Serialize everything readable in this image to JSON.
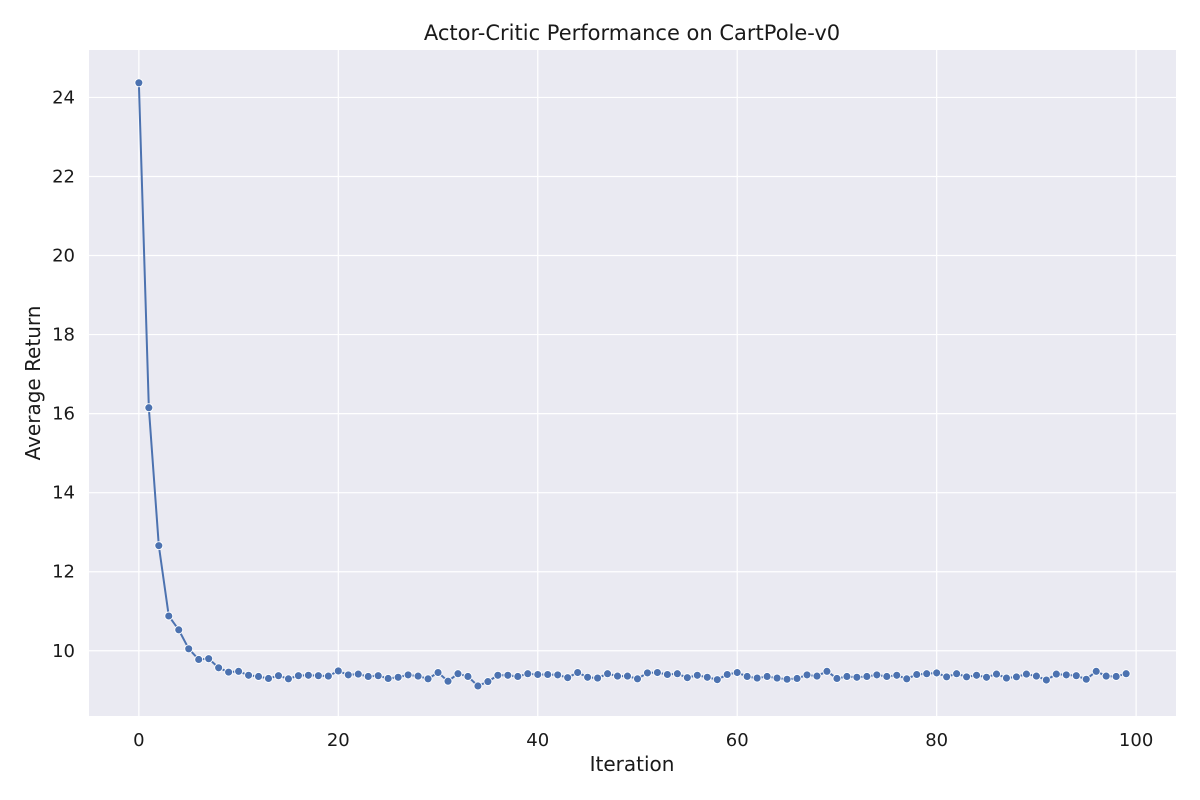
{
  "chart_data": {
    "type": "line",
    "title": "Actor-Critic Performance on CartPole-v0",
    "xlabel": "Iteration",
    "ylabel": "Average Return",
    "xlim": [
      -5,
      104
    ],
    "ylim": [
      8.35,
      25.2
    ],
    "xticks": [
      0,
      20,
      40,
      60,
      80,
      100
    ],
    "yticks": [
      10,
      12,
      14,
      16,
      18,
      20,
      22,
      24
    ],
    "grid": true,
    "colors": {
      "background": "#EAEAF2",
      "grid": "#FFFFFF",
      "line": "#4C72B0",
      "marker_edge": "#FFFFFF"
    },
    "series": [
      {
        "x": [
          0,
          1,
          2,
          3,
          4,
          5,
          6,
          7,
          8,
          9,
          10,
          11,
          12,
          13,
          14,
          15,
          16,
          17,
          18,
          19,
          20,
          21,
          22,
          23,
          24,
          25,
          26,
          27,
          28,
          29,
          30,
          31,
          32,
          33,
          34,
          35,
          36,
          37,
          38,
          39,
          40,
          41,
          42,
          43,
          44,
          45,
          46,
          47,
          48,
          49,
          50,
          51,
          52,
          53,
          54,
          55,
          56,
          57,
          58,
          59,
          60,
          61,
          62,
          63,
          64,
          65,
          66,
          67,
          68,
          69,
          70,
          71,
          72,
          73,
          74,
          75,
          76,
          77,
          78,
          79,
          80,
          81,
          82,
          83,
          84,
          85,
          86,
          87,
          88,
          89,
          90,
          91,
          92,
          93,
          94,
          95,
          96,
          97,
          98,
          99
        ],
        "y": [
          24.37,
          16.15,
          12.66,
          10.88,
          10.53,
          10.05,
          9.78,
          9.8,
          9.57,
          9.46,
          9.48,
          9.38,
          9.35,
          9.3,
          9.37,
          9.29,
          9.37,
          9.38,
          9.37,
          9.36,
          9.49,
          9.39,
          9.41,
          9.35,
          9.37,
          9.3,
          9.33,
          9.39,
          9.36,
          9.29,
          9.45,
          9.23,
          9.42,
          9.35,
          9.11,
          9.22,
          9.38,
          9.38,
          9.35,
          9.42,
          9.4,
          9.4,
          9.39,
          9.32,
          9.45,
          9.33,
          9.31,
          9.42,
          9.36,
          9.36,
          9.29,
          9.44,
          9.45,
          9.4,
          9.42,
          9.32,
          9.38,
          9.33,
          9.27,
          9.4,
          9.45,
          9.35,
          9.31,
          9.35,
          9.31,
          9.28,
          9.3,
          9.39,
          9.36,
          9.48,
          9.3,
          9.35,
          9.33,
          9.35,
          9.39,
          9.35,
          9.38,
          9.29,
          9.4,
          9.42,
          9.44,
          9.34,
          9.42,
          9.34,
          9.38,
          9.33,
          9.41,
          9.31,
          9.34,
          9.41,
          9.36,
          9.26,
          9.41,
          9.39,
          9.37,
          9.28,
          9.48,
          9.36,
          9.35,
          9.42
        ]
      }
    ]
  }
}
